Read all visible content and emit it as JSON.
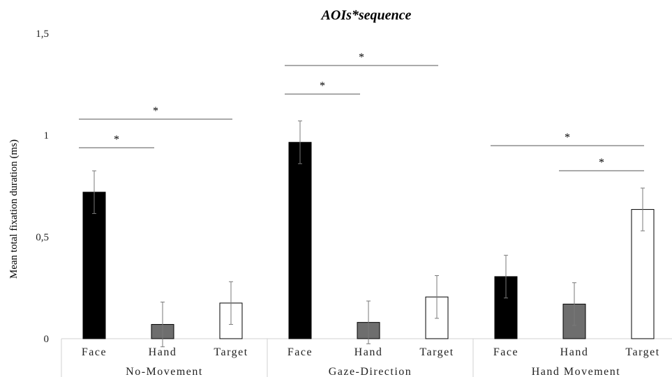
{
  "chart_data": {
    "type": "bar",
    "title": "AOIs*sequence",
    "ylabel": "Mean total fixation duration (ms)",
    "ylim": [
      0,
      1.5
    ],
    "yticks": [
      "0",
      "0,5",
      "1",
      "1,5"
    ],
    "ytick_values": [
      0,
      0.5,
      1,
      1.5
    ],
    "groups": [
      {
        "name": "No-Movement",
        "bars": [
          {
            "label": "Face",
            "value": 0.72,
            "err": 0.105
          },
          {
            "label": "Hand",
            "value": 0.07,
            "err": 0.11
          },
          {
            "label": "Target",
            "value": 0.175,
            "err": 0.105
          }
        ]
      },
      {
        "name": "Gaze-Direction",
        "bars": [
          {
            "label": "Face",
            "value": 0.965,
            "err": 0.105
          },
          {
            "label": "Hand",
            "value": 0.08,
            "err": 0.105
          },
          {
            "label": "Target",
            "value": 0.205,
            "err": 0.105
          }
        ]
      },
      {
        "name": "Hand Movement",
        "bars": [
          {
            "label": "Face",
            "value": 0.305,
            "err": 0.105
          },
          {
            "label": "Hand",
            "value": 0.17,
            "err": 0.105
          },
          {
            "label": "Target",
            "value": 0.635,
            "err": 0.105
          }
        ]
      }
    ],
    "bar_colors": {
      "Face": "#000000",
      "Hand": "#6e6e6e",
      "Target": "#ffffff"
    },
    "significance": [
      {
        "group": 0,
        "from": 0,
        "to": 1,
        "label": "*"
      },
      {
        "group": 0,
        "from": 0,
        "to": 2,
        "label": "*"
      },
      {
        "group": 1,
        "from": 0,
        "to": 1,
        "label": "*"
      },
      {
        "group": 1,
        "from": 0,
        "to": 2,
        "label": "*"
      },
      {
        "group": 2,
        "from": 1,
        "to": 2,
        "label": "*"
      },
      {
        "group": 2,
        "from": 0,
        "to": 2,
        "label": "*"
      }
    ],
    "grid": false,
    "legend": "none"
  }
}
